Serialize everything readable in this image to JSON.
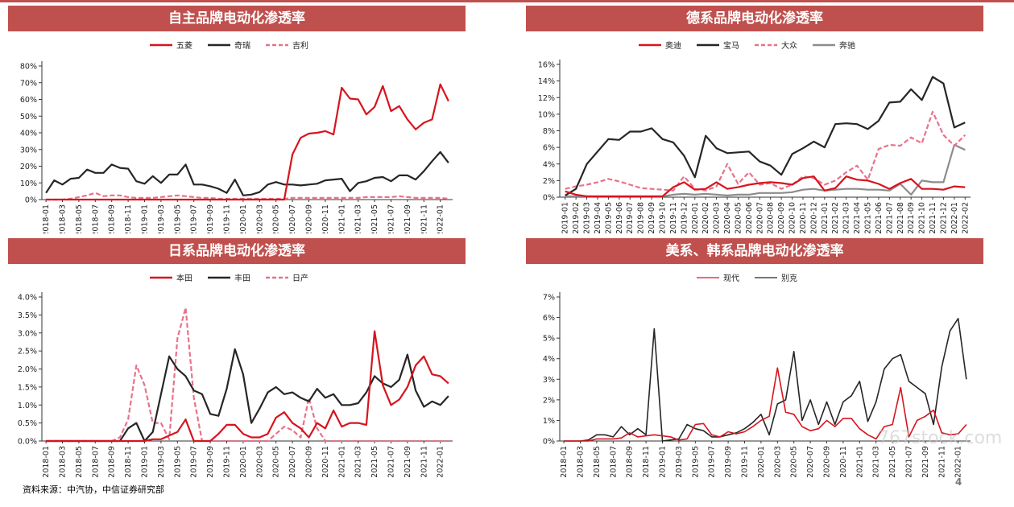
{
  "source": "资料来源：中汽协，中信证券研究部",
  "page_number": "4",
  "watermark": "767stock.com",
  "colors": {
    "header": "#c0504d",
    "red": "#d7141e",
    "black": "#262626",
    "pink": "#e8728a",
    "gray": "#8c8c8c"
  },
  "chart_data": [
    {
      "type": "line",
      "title": "自主品牌电动化渗透率",
      "ylim": [
        0,
        80
      ],
      "ytick_step": 10,
      "yformat": "pct0",
      "x": [
        "2018-01",
        "2018-02",
        "2018-03",
        "2018-04",
        "2018-05",
        "2018-06",
        "2018-07",
        "2018-08",
        "2018-09",
        "2018-10",
        "2018-11",
        "2018-12",
        "2019-01",
        "2019-02",
        "2019-03",
        "2019-04",
        "2019-05",
        "2019-06",
        "2019-07",
        "2019-08",
        "2019-09",
        "2019-10",
        "2019-11",
        "2019-12",
        "2020-01",
        "2020-02",
        "2020-03",
        "2020-04",
        "2020-05",
        "2020-06",
        "2020-07",
        "2020-08",
        "2020-09",
        "2020-10",
        "2020-11",
        "2020-12",
        "2021-01",
        "2021-02",
        "2021-03",
        "2021-04",
        "2021-05",
        "2021-06",
        "2021-07",
        "2021-08",
        "2021-09",
        "2021-10",
        "2021-11",
        "2021-12",
        "2022-01",
        "2022-02"
      ],
      "xtick_step": 2,
      "series": [
        {
          "name": "五菱",
          "color": "#d7141e",
          "style": "solid",
          "values": [
            0,
            0,
            0,
            0,
            0,
            0,
            0,
            0,
            0,
            0,
            0,
            0,
            0,
            0,
            0,
            0,
            0,
            0,
            0,
            0,
            0,
            0,
            0,
            0,
            0,
            0,
            0,
            0,
            0,
            0,
            27,
            37,
            39.5,
            40,
            41,
            39,
            67,
            60.5,
            60,
            51,
            55.5,
            68,
            53,
            56,
            48,
            42,
            46,
            48,
            69,
            59
          ]
        },
        {
          "name": "奇瑞",
          "color": "#262626",
          "style": "solid",
          "values": [
            4,
            11.5,
            9,
            12.5,
            13,
            18,
            16,
            16,
            21,
            19,
            18.5,
            11,
            9.5,
            14,
            10,
            15,
            15,
            21,
            9,
            9,
            8,
            6.5,
            4,
            12,
            2.5,
            3,
            4.5,
            9,
            10.5,
            9,
            9,
            8.5,
            9,
            9.5,
            11.5,
            12,
            12.5,
            5,
            10,
            11,
            13,
            13.5,
            11,
            14.5,
            14.5,
            12,
            17,
            23,
            28.5,
            22
          ]
        },
        {
          "name": "吉利",
          "color": "#e8728a",
          "style": "dashed",
          "values": [
            0,
            0,
            0,
            0.5,
            1.5,
            2.5,
            4,
            2,
            2.5,
            2.5,
            1.5,
            1,
            1,
            1,
            1.5,
            2,
            2.5,
            2,
            1.5,
            1,
            1,
            0.5,
            0.5,
            0.5,
            0.5,
            0.5,
            0.5,
            0.5,
            0.5,
            0.5,
            1,
            1,
            1,
            1,
            1,
            1,
            1,
            1,
            1,
            1.5,
            1.5,
            1.5,
            1.5,
            2,
            1.5,
            1,
            1,
            1,
            1,
            0.5
          ]
        }
      ]
    },
    {
      "type": "line",
      "title": "德系品牌电动化渗透率",
      "ylim": [
        0,
        16
      ],
      "ytick_step": 2,
      "yformat": "pct0",
      "x": [
        "2019-01",
        "2019-02",
        "2019-03",
        "2019-04",
        "2019-05",
        "2019-06",
        "2019-07",
        "2019-08",
        "2019-09",
        "2019-10",
        "2019-11",
        "2019-12",
        "2020-01",
        "2020-02",
        "2020-03",
        "2020-04",
        "2020-05",
        "2020-06",
        "2020-07",
        "2020-08",
        "2020-09",
        "2020-10",
        "2020-11",
        "2020-12",
        "2021-01",
        "2021-02",
        "2021-03",
        "2021-04",
        "2021-05",
        "2021-06",
        "2021-07",
        "2021-08",
        "2021-09",
        "2021-10",
        "2021-11",
        "2021-12",
        "2022-01",
        "2022-02"
      ],
      "xtick_step": 1,
      "series": [
        {
          "name": "奥迪",
          "color": "#d7141e",
          "style": "solid",
          "values": [
            0.7,
            0.3,
            0.1,
            0.1,
            0.1,
            0.1,
            0.1,
            0.1,
            0.1,
            0.1,
            1.2,
            1.8,
            0.9,
            1.0,
            1.8,
            1.0,
            1.2,
            1.5,
            1.7,
            1.8,
            1.7,
            1.5,
            2.3,
            2.5,
            0.8,
            1.1,
            2.5,
            2.1,
            2.0,
            1.6,
            1.0,
            1.7,
            2.2,
            1.0,
            1.0,
            0.9,
            1.3,
            1.2
          ]
        },
        {
          "name": "宝马",
          "color": "#262626",
          "style": "solid",
          "values": [
            0.2,
            1.0,
            4.0,
            5.5,
            7.0,
            6.9,
            7.9,
            7.9,
            8.3,
            7.0,
            6.6,
            5.0,
            2.4,
            7.4,
            5.9,
            5.3,
            5.4,
            5.5,
            4.3,
            3.8,
            2.7,
            5.2,
            5.9,
            6.7,
            6.0,
            8.8,
            8.9,
            8.8,
            8.2,
            9.2,
            11.4,
            11.5,
            13.0,
            11.7,
            14.5,
            13.7,
            8.4,
            9.0
          ]
        },
        {
          "name": "大众",
          "color": "#e8728a",
          "style": "dashed",
          "values": [
            1.0,
            1.3,
            1.5,
            1.8,
            2.2,
            1.9,
            1.5,
            1.1,
            1.0,
            0.9,
            0.8,
            2.5,
            1.0,
            0.8,
            1.3,
            4.0,
            1.6,
            3.0,
            1.5,
            1.7,
            1.0,
            1.5,
            2.5,
            2.3,
            1.5,
            2.0,
            3.0,
            3.8,
            2.1,
            5.8,
            6.3,
            6.2,
            7.2,
            6.5,
            10.3,
            7.5,
            6.2,
            7.5
          ]
        },
        {
          "name": "奔驰",
          "color": "#8c8c8c",
          "style": "solid",
          "values": [
            0.1,
            0.1,
            0.1,
            0.1,
            0.1,
            0.1,
            0.1,
            0.1,
            0.1,
            0.1,
            0.3,
            0.4,
            0.3,
            0.4,
            0.3,
            0.2,
            0.3,
            0.3,
            0.5,
            0.5,
            0.5,
            0.6,
            0.9,
            1.0,
            0.8,
            0.9,
            1.0,
            1.0,
            0.9,
            0.9,
            0.8,
            1.6,
            0.3,
            2.0,
            1.8,
            1.8,
            6.3,
            5.7
          ]
        }
      ]
    },
    {
      "type": "line",
      "title": "日系品牌电动化渗透率",
      "ylim": [
        0,
        4
      ],
      "ytick_step": 0.5,
      "yformat": "pct1",
      "x": [
        "2018-01",
        "2018-02",
        "2018-03",
        "2018-04",
        "2018-05",
        "2018-06",
        "2018-07",
        "2018-08",
        "2018-09",
        "2018-10",
        "2018-11",
        "2018-12",
        "2019-01",
        "2019-02",
        "2019-03",
        "2019-04",
        "2019-05",
        "2019-06",
        "2019-07",
        "2019-08",
        "2019-09",
        "2019-10",
        "2019-11",
        "2019-12",
        "2020-01",
        "2020-02",
        "2020-03",
        "2020-04",
        "2020-05",
        "2020-06",
        "2020-07",
        "2020-08",
        "2020-09",
        "2020-10",
        "2020-11",
        "2020-12",
        "2021-01",
        "2021-02",
        "2021-03",
        "2021-04",
        "2021-05",
        "2021-06",
        "2021-07",
        "2021-08",
        "2021-09",
        "2021-10",
        "2021-11",
        "2021-12",
        "2022-01",
        "2022-02"
      ],
      "xtick_step": 2,
      "series": [
        {
          "name": "本田",
          "color": "#d7141e",
          "style": "solid",
          "values": [
            0,
            0,
            0,
            0,
            0,
            0,
            0,
            0,
            0,
            0,
            0,
            0,
            0,
            0.05,
            0.05,
            0.15,
            0.25,
            0.6,
            0,
            0,
            0,
            0.2,
            0.45,
            0.45,
            0.2,
            0.1,
            0.1,
            0.2,
            0.65,
            0.8,
            0.5,
            0.35,
            0.1,
            0.5,
            0.35,
            0.85,
            0.4,
            0.5,
            0.5,
            0.45,
            3.05,
            1.55,
            1.0,
            1.15,
            1.5,
            2.1,
            2.35,
            1.85,
            1.8,
            1.6
          ]
        },
        {
          "name": "丰田",
          "color": "#262626",
          "style": "solid",
          "values": [
            0,
            0,
            0,
            0,
            0,
            0,
            0,
            0,
            0,
            0,
            0.35,
            0.5,
            0,
            0.25,
            1.3,
            2.35,
            2.0,
            1.8,
            1.4,
            1.3,
            0.75,
            0.7,
            1.45,
            2.55,
            1.85,
            0.5,
            0.9,
            1.35,
            1.5,
            1.3,
            1.35,
            1.2,
            1.1,
            1.45,
            1.2,
            1.3,
            1.0,
            1.0,
            1.05,
            1.35,
            1.8,
            1.6,
            1.5,
            1.7,
            2.4,
            1.4,
            0.95,
            1.1,
            1.0,
            1.25
          ]
        },
        {
          "name": "日产",
          "color": "#e8728a",
          "style": "dashed",
          "values": [
            0,
            0,
            0,
            0,
            0,
            0,
            0,
            0,
            0,
            0.1,
            0.6,
            2.1,
            1.55,
            0.5,
            0.5,
            0.05,
            2.85,
            3.7,
            1.2,
            0,
            0,
            0,
            0,
            0,
            0,
            0,
            0,
            0,
            0.2,
            0.4,
            0.3,
            0.1,
            1.2,
            0.35,
            0,
            0,
            0,
            0,
            0,
            0,
            0,
            0,
            0,
            0,
            0,
            0,
            0,
            0,
            0,
            0
          ]
        }
      ]
    },
    {
      "type": "line",
      "title": "美系、韩系品牌电动化渗透率",
      "ylim": [
        0,
        7
      ],
      "ytick_step": 1,
      "yformat": "pct0",
      "x": [
        "2018-01",
        "2018-02",
        "2018-03",
        "2018-04",
        "2018-05",
        "2018-06",
        "2018-07",
        "2018-08",
        "2018-09",
        "2018-10",
        "2018-11",
        "2018-12",
        "2019-01",
        "2019-02",
        "2019-03",
        "2019-04",
        "2019-05",
        "2019-06",
        "2019-07",
        "2019-08",
        "2019-09",
        "2019-10",
        "2019-11",
        "2019-12",
        "2020-01",
        "2020-02",
        "2020-03",
        "2020-04",
        "2020-05",
        "2020-06",
        "2020-07",
        "2020-08",
        "2020-09",
        "2020-10",
        "2020-11",
        "2020-12",
        "2021-01",
        "2021-02",
        "2021-03",
        "2021-04",
        "2021-05",
        "2021-06",
        "2021-07",
        "2021-08",
        "2021-09",
        "2021-10",
        "2021-11",
        "2021-12",
        "2022-01",
        "2022-02"
      ],
      "xtick_step": 2,
      "series": [
        {
          "name": "现代",
          "color": "#d7141e",
          "style": "solid",
          "values": [
            0,
            0,
            0,
            0,
            0.1,
            0.1,
            0.1,
            0.15,
            0.4,
            0.2,
            0.25,
            0.3,
            0.25,
            0.2,
            0.05,
            0.1,
            0.8,
            0.85,
            0.3,
            0.2,
            0.45,
            0.35,
            0.45,
            0.7,
            1.0,
            1.2,
            3.55,
            1.4,
            1.3,
            0.7,
            0.5,
            0.6,
            1.0,
            0.7,
            1.1,
            1.1,
            0.6,
            0.3,
            0.1,
            0.7,
            0.8,
            2.6,
            0.2,
            1.0,
            1.2,
            1.5,
            0.4,
            0.3,
            0.35,
            0.8
          ]
        },
        {
          "name": "别克",
          "color": "#262626",
          "style": "solid",
          "values": [
            0,
            0,
            0,
            0.05,
            0.3,
            0.3,
            0.2,
            0.7,
            0.3,
            0.6,
            0.3,
            5.45,
            0,
            0.05,
            0.1,
            0.8,
            0.6,
            0.5,
            0.2,
            0.2,
            0.3,
            0.4,
            0.6,
            0.9,
            1.3,
            0.3,
            1.8,
            2.0,
            4.35,
            1.0,
            2.0,
            0.8,
            1.9,
            0.8,
            1.9,
            2.2,
            2.9,
            0.95,
            1.9,
            3.5,
            4.0,
            4.2,
            2.9,
            2.6,
            2.3,
            0.8,
            3.6,
            5.35,
            5.95,
            3.0
          ]
        }
      ]
    }
  ]
}
